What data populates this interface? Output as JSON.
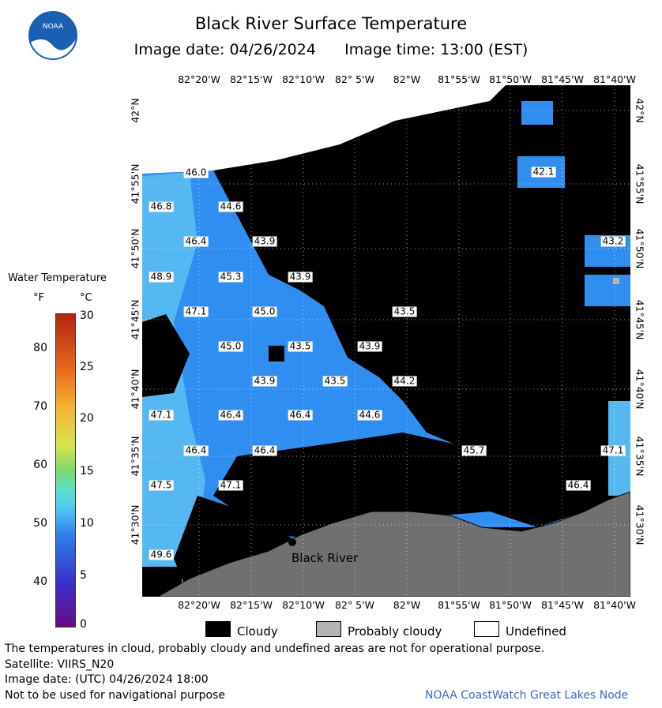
{
  "header": {
    "title": "Black River Surface Temperature",
    "subtitle": "Image date: 04/26/2024      Image time: 13:00 (EST)",
    "logo_text": "NOAA"
  },
  "axes": {
    "longitudes": [
      "82°20'W",
      "82°15'W",
      "82°10'W",
      "82° 5'W",
      "82°W",
      "81°55'W",
      "81°50'W",
      "81°45'W",
      "81°40'W"
    ],
    "latitudes": [
      "42°N",
      "41°55'N",
      "41°50'N",
      "41°45'N",
      "41°40'N",
      "41°35'N",
      "41°30'N"
    ]
  },
  "temperature_labels": [
    "46.0",
    "46.8",
    "44.6",
    "46.4",
    "43.9",
    "48.9",
    "45.3",
    "43.9",
    "47.1",
    "45.0",
    "43.5",
    "45.0",
    "43.5",
    "43.9",
    "43.9",
    "43.5",
    "44.2",
    "47.1",
    "46.4",
    "46.4",
    "44.6",
    "46.4",
    "46.4",
    "45.7",
    "47.1",
    "47.5",
    "47.1",
    "46.4",
    "49.6",
    "42.1",
    "43.2"
  ],
  "place_label": "Black River",
  "scale": {
    "title": "Water Temperature",
    "unit_f": "°F",
    "unit_c": "°C",
    "fahrenheit_ticks": [
      "80",
      "70",
      "60",
      "50",
      "40"
    ],
    "celsius_ticks": [
      "30",
      "25",
      "20",
      "15",
      "10",
      "5",
      "0"
    ]
  },
  "legend": {
    "cloudy": "Cloudy",
    "probably_cloudy": "Probably cloudy",
    "undefined": "Undefined",
    "colors": {
      "cloudy": "#000000",
      "probably_cloudy": "#b4b4b4",
      "undefined": "#ffffff"
    }
  },
  "map_colors": {
    "water": "#2f8ef0",
    "water_warm": "#56b8f0",
    "land": "#707070",
    "cloud": "#000000"
  },
  "footer": {
    "disclaimer": "The temperatures in cloud, probably cloudy and undefined areas are not for operational purpose.",
    "satellite": "Satellite: VIIRS_N20",
    "utc_date": "Image date: (UTC) 04/26/2024  18:00",
    "nav_warning": "Not to be used for navigational purpose",
    "credit": "NOAA CoastWatch Great Lakes Node"
  }
}
